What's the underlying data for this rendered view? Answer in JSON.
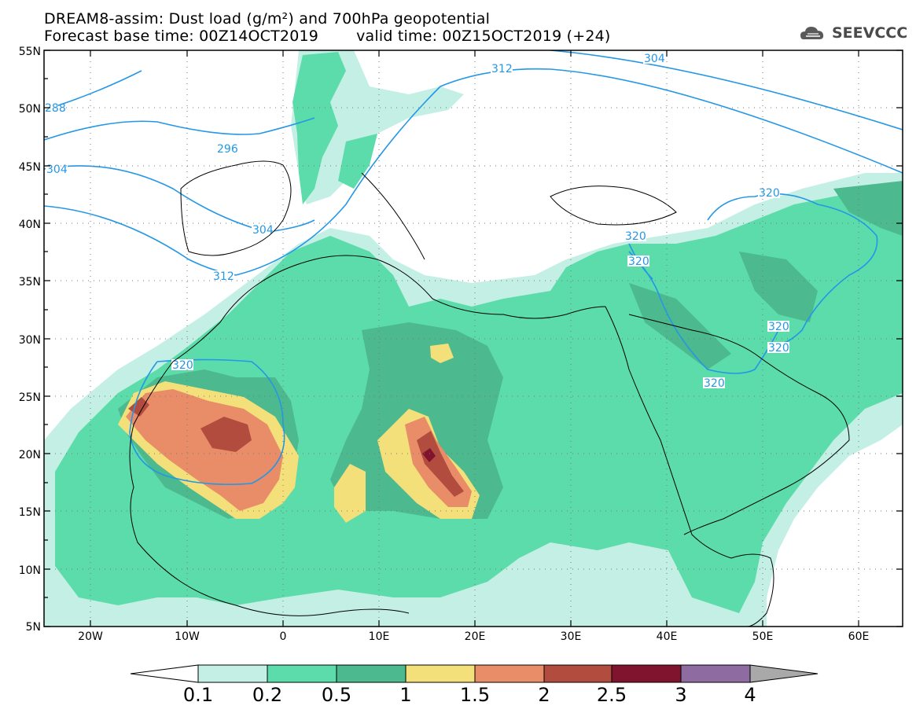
{
  "title": {
    "line1": "DREAM8-assim: Dust load (g/m²) and 700hPa geopotential",
    "base_time": "Forecast base time: 00Z14OCT2019",
    "valid_time": "valid time: 00Z15OCT2019 (+24)"
  },
  "logo": {
    "text": "SEEVCCC",
    "icon": "cloud-logo-icon"
  },
  "axes": {
    "lat_ticks": [
      "55N",
      "50N",
      "45N",
      "40N",
      "35N",
      "30N",
      "25N",
      "20N",
      "15N",
      "10N",
      "5N"
    ],
    "lon_ticks": [
      "20W",
      "10W",
      "0",
      "10E",
      "20E",
      "30E",
      "40E",
      "50E",
      "60E"
    ]
  },
  "contour_labels": [
    "288",
    "296",
    "304",
    "304",
    "312",
    "312",
    "304",
    "320",
    "320",
    "320",
    "320",
    "320",
    "320",
    "320"
  ],
  "colorbar": {
    "labels": [
      "0.1",
      "0.2",
      "0.5",
      "1",
      "1.5",
      "2",
      "2.5",
      "3",
      "4"
    ],
    "colors": [
      "#c3efe4",
      "#5cdcaa",
      "#4db98e",
      "#f3e07a",
      "#e98c68",
      "#b14c3e",
      "#80132e",
      "#8e6ba0",
      "#a9a9a9"
    ]
  }
}
